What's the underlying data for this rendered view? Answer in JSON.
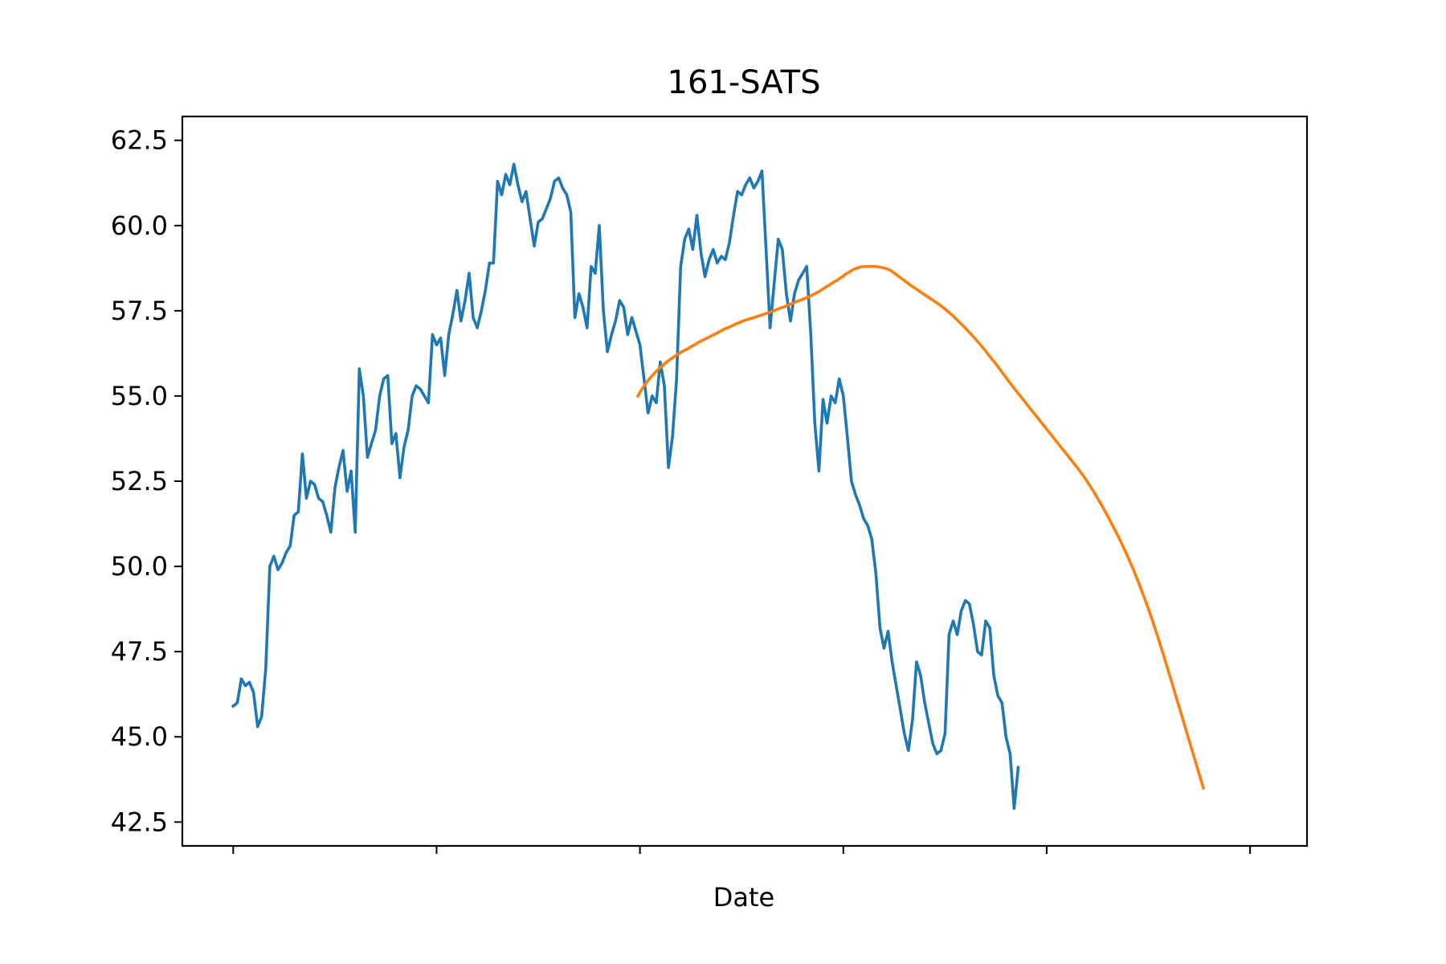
{
  "chart_data": {
    "type": "line",
    "title": "161-SATS",
    "xlabel": "Date",
    "ylabel": "",
    "ylim": [
      41.8,
      63.2
    ],
    "yticks": [
      "42.5",
      "45.0",
      "47.5",
      "50.0",
      "52.5",
      "55.0",
      "57.5",
      "60.0",
      "62.5"
    ],
    "x_tick_count": 6,
    "x_tick_labels": [],
    "xlim": [
      -25,
      528
    ],
    "grid": false,
    "legend": "none",
    "colors": {
      "price": "#1f77b4",
      "moving_average": "#ff7f0e"
    },
    "series": [
      {
        "key": "price",
        "x_start": 0,
        "x_step": 2,
        "values": [
          45.9,
          46.0,
          46.7,
          46.5,
          46.6,
          46.3,
          45.3,
          45.6,
          47.0,
          50.0,
          50.3,
          49.9,
          50.1,
          50.4,
          50.6,
          51.5,
          51.6,
          53.3,
          52.0,
          52.5,
          52.4,
          52.0,
          51.9,
          51.5,
          51.0,
          52.3,
          52.9,
          53.4,
          52.2,
          52.8,
          51.0,
          55.8,
          55.0,
          53.2,
          53.6,
          54.0,
          55.0,
          55.5,
          55.6,
          53.6,
          53.9,
          52.6,
          53.5,
          54.0,
          55.0,
          55.3,
          55.2,
          55.0,
          54.8,
          56.8,
          56.5,
          56.7,
          55.6,
          56.8,
          57.4,
          58.1,
          57.2,
          57.8,
          58.6,
          57.3,
          57.0,
          57.5,
          58.1,
          58.9,
          58.9,
          61.3,
          60.9,
          61.5,
          61.2,
          61.8,
          61.2,
          60.7,
          61.0,
          60.2,
          59.4,
          60.1,
          60.2,
          60.5,
          60.8,
          61.3,
          61.4,
          61.1,
          60.9,
          60.4,
          57.3,
          58.0,
          57.6,
          57.0,
          58.8,
          58.6,
          60.0,
          57.5,
          56.3,
          56.8,
          57.2,
          57.8,
          57.6,
          56.8,
          57.3,
          56.9,
          56.5,
          55.5,
          54.5,
          55.0,
          54.8,
          56.0,
          55.3,
          52.9,
          53.8,
          55.5,
          58.8,
          59.6,
          59.9,
          59.3,
          60.3,
          59.2,
          58.5,
          59.0,
          59.3,
          58.9,
          59.1,
          59.0,
          59.5,
          60.3,
          61.0,
          60.9,
          61.2,
          61.4,
          61.1,
          61.3,
          61.6,
          59.3,
          57.0,
          58.3,
          59.6,
          59.3,
          58.0,
          57.2,
          58.0,
          58.4,
          58.6,
          58.8,
          56.8,
          54.2,
          52.8,
          54.9,
          54.2,
          55.0,
          54.8,
          55.5,
          55.0,
          53.8,
          52.5,
          52.1,
          51.8,
          51.4,
          51.2,
          50.8,
          49.8,
          48.2,
          47.6,
          48.1,
          47.2,
          46.5,
          45.8,
          45.1,
          44.6,
          45.5,
          47.2,
          46.8,
          46.0,
          45.4,
          44.8,
          44.5,
          44.6,
          45.1,
          48.0,
          48.4,
          48.0,
          48.7,
          49.0,
          48.9,
          48.3,
          47.5,
          47.4,
          48.4,
          48.2,
          46.8,
          46.2,
          46.0,
          45.0,
          44.5,
          42.9,
          44.1
        ]
      },
      {
        "key": "moving_average",
        "x_start": 199,
        "x_step": 2,
        "values": [
          55.0,
          55.21,
          55.38,
          55.53,
          55.66,
          55.78,
          55.89,
          55.99,
          56.08,
          56.16,
          56.24,
          56.31,
          56.37,
          56.44,
          56.51,
          56.58,
          56.64,
          56.7,
          56.76,
          56.82,
          56.88,
          56.95,
          57.0,
          57.05,
          57.11,
          57.16,
          57.21,
          57.25,
          57.28,
          57.32,
          57.36,
          57.4,
          57.44,
          57.48,
          57.53,
          57.58,
          57.62,
          57.67,
          57.72,
          57.77,
          57.81,
          57.86,
          57.91,
          57.97,
          58.03,
          58.1,
          58.18,
          58.25,
          58.33,
          58.4,
          58.48,
          58.57,
          58.64,
          58.71,
          58.76,
          58.79,
          58.8,
          58.8,
          58.8,
          58.79,
          58.77,
          58.74,
          58.69,
          58.61,
          58.52,
          58.43,
          58.34,
          58.25,
          58.17,
          58.09,
          58.01,
          57.93,
          57.85,
          57.77,
          57.69,
          57.6,
          57.5,
          57.4,
          57.29,
          57.17,
          57.05,
          56.93,
          56.8,
          56.67,
          56.53,
          56.39,
          56.24,
          56.09,
          55.94,
          55.78,
          55.62,
          55.46,
          55.3,
          55.15,
          55.0,
          54.85,
          54.7,
          54.55,
          54.4,
          54.25,
          54.1,
          53.95,
          53.8,
          53.65,
          53.5,
          53.35,
          53.2,
          53.05,
          52.9,
          52.74,
          52.57,
          52.39,
          52.2,
          52.0,
          51.8,
          51.58,
          51.36,
          51.13,
          50.9,
          50.65,
          50.4,
          50.13,
          49.85,
          49.55,
          49.24,
          48.92,
          48.58,
          48.23,
          47.86,
          47.48,
          47.09,
          46.7,
          46.3,
          45.9,
          45.5,
          45.1,
          44.7,
          44.3,
          43.9,
          43.5
        ]
      }
    ]
  }
}
